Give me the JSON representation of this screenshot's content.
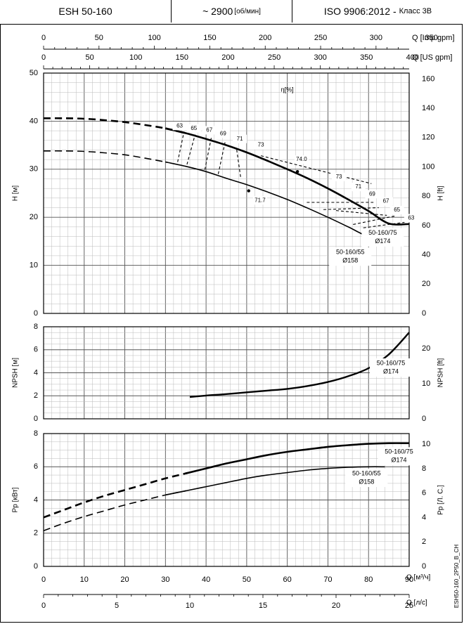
{
  "header": {
    "model": "ESH 50-160",
    "speed": "~ 2900",
    "speed_unit": "[об/мин]",
    "standard": "ISO 9906:2012 -",
    "standard_class": "Класс 3В"
  },
  "footer_code": "ESH50-160_2P50_B_CH",
  "chart_data": [
    {
      "type": "line",
      "name": "head",
      "ylabel": "H [м]",
      "ylabel_right": "H [ft]",
      "ylim": [
        0,
        50
      ],
      "yticks": [
        0,
        10,
        20,
        30,
        40,
        50
      ],
      "yright_ticks": [
        0,
        20,
        40,
        60,
        80,
        100,
        120,
        140,
        160
      ],
      "efficiency_label": "η[%]",
      "series": [
        {
          "name": "50-160/75",
          "diameter": "Ø174",
          "x": [
            0,
            5,
            10,
            15,
            20,
            25,
            30,
            35,
            40,
            45,
            50,
            55,
            60,
            65,
            70,
            75,
            80,
            85,
            90
          ],
          "y": [
            40.6,
            40.6,
            40.5,
            40.2,
            39.8,
            39.2,
            38.5,
            37.5,
            36.3,
            35.0,
            33.5,
            31.8,
            30.0,
            28.1,
            26.0,
            23.7,
            21.3,
            18.7,
            18.6
          ],
          "dashed_below_x": 35
        },
        {
          "name": "50-160/55",
          "diameter": "Ø158",
          "x": [
            0,
            5,
            10,
            15,
            20,
            25,
            30,
            35,
            40,
            45,
            50,
            55,
            60,
            65,
            70,
            75,
            80,
            84
          ],
          "y": [
            33.8,
            33.8,
            33.7,
            33.4,
            33.0,
            32.3,
            31.5,
            30.6,
            29.5,
            28.1,
            26.8,
            25.3,
            23.7,
            21.9,
            20.0,
            18.0,
            16.0,
            16.0
          ],
          "dashed_below_x": 33
        }
      ],
      "efficiency_lines": [
        {
          "label": "63",
          "x": [
            33,
            34.5
          ],
          "y": [
            31.5,
            37.5
          ]
        },
        {
          "label": "65",
          "x": [
            35.3,
            37.3
          ],
          "y": [
            31.0,
            37.2
          ]
        },
        {
          "label": "67",
          "x": [
            39.7,
            41.3
          ],
          "y": [
            29.9,
            36.6
          ]
        },
        {
          "label": "69",
          "x": [
            43.0,
            44.7
          ],
          "y": [
            29.0,
            35.7
          ]
        },
        {
          "label": "71",
          "x": [
            48.5,
            47.5
          ],
          "y": [
            28.4,
            34.3
          ]
        },
        {
          "label": "73",
          "x": [
            53.5,
            80.7
          ],
          "y": [
            32.8,
            27.0
          ]
        },
        {
          "label": "74.0",
          "x": [
            62.5
          ],
          "y": [
            29.5
          ]
        },
        {
          "label": "71",
          "x": [
            64.8,
            81.2
          ],
          "y": [
            23.1,
            23.1
          ]
        },
        {
          "label": "69",
          "x": [
            68.9,
            82.5
          ],
          "y": [
            21.6,
            22.0
          ]
        },
        {
          "label": "67",
          "x": [
            72.0,
            84.5
          ],
          "y": [
            21.4,
            20.4
          ]
        },
        {
          "label": "65",
          "x": [
            76.2,
            86.7
          ],
          "y": [
            18.5,
            20.3
          ]
        },
        {
          "label": "63",
          "x": [
            78.7,
            89.3
          ],
          "y": [
            17.8,
            19.0
          ]
        }
      ],
      "efficiency_curve_labels": [
        {
          "text": "63",
          "x": 33.5,
          "y": 39.0
        },
        {
          "text": "65",
          "x": 37.0,
          "y": 38.5
        },
        {
          "text": "67",
          "x": 40.8,
          "y": 38.1
        },
        {
          "text": "69",
          "x": 44.2,
          "y": 37.4
        },
        {
          "text": "71",
          "x": 48.3,
          "y": 36.3
        },
        {
          "text": "73",
          "x": 53.5,
          "y": 35.0
        },
        {
          "text": "74.0",
          "x": 63.5,
          "y": 32.0
        },
        {
          "text": "73",
          "x": 72.7,
          "y": 28.4
        },
        {
          "text": "71",
          "x": 77.5,
          "y": 26.3
        },
        {
          "text": "69",
          "x": 80.9,
          "y": 24.8
        },
        {
          "text": "67",
          "x": 84.3,
          "y": 23.3
        },
        {
          "text": "65",
          "x": 87.0,
          "y": 21.5
        },
        {
          "text": "63",
          "x": 90.5,
          "y": 19.8
        },
        {
          "text": "71.7",
          "x": 53.3,
          "y": 23.5
        }
      ]
    },
    {
      "type": "line",
      "name": "npsh",
      "ylabel": "NPSH [м]",
      "ylabel_right": "NPSH [ft]",
      "ylim": [
        0,
        8
      ],
      "yticks": [
        0,
        2,
        4,
        6,
        8
      ],
      "yright_ticks": [
        0,
        10,
        20
      ],
      "series": [
        {
          "name": "50-160/75",
          "diameter": "Ø174",
          "x": [
            36,
            40,
            45,
            50,
            55,
            60,
            65,
            70,
            75,
            80,
            85,
            90
          ],
          "y": [
            1.9,
            2.02,
            2.15,
            2.3,
            2.45,
            2.6,
            2.85,
            3.2,
            3.7,
            4.4,
            5.6,
            7.5
          ]
        }
      ]
    },
    {
      "type": "line",
      "name": "power",
      "ylabel": "Pp [кВт]",
      "ylabel_right": "Pp [Л. С.]",
      "ylim": [
        0,
        8
      ],
      "yticks": [
        0,
        2,
        4,
        6,
        8
      ],
      "yright_ticks": [
        0,
        2,
        4,
        6,
        8,
        10
      ],
      "xlabel_q_m3h": "Q [м³/ч]",
      "xticks_m3h": [
        0,
        10,
        20,
        30,
        40,
        50,
        60,
        70,
        80,
        90
      ],
      "xlabel_q_ls": "Q [л/с]",
      "xticks_ls": [
        0,
        5,
        10,
        15,
        20,
        25
      ],
      "xlabel_q_imp": "Q [Imp gpm]",
      "xticks_imp": [
        0,
        50,
        100,
        150,
        200,
        250,
        300,
        350
      ],
      "xlabel_q_us": "Q [US gpm]",
      "xticks_us": [
        0,
        50,
        100,
        150,
        200,
        250,
        300,
        350,
        400
      ],
      "series": [
        {
          "name": "50-160/75",
          "diameter": "Ø174",
          "x": [
            0,
            5,
            10,
            15,
            20,
            25,
            30,
            35,
            40,
            45,
            50,
            55,
            60,
            65,
            70,
            75,
            80,
            85,
            90
          ],
          "y": [
            2.95,
            3.4,
            3.85,
            4.25,
            4.6,
            4.95,
            5.3,
            5.6,
            5.9,
            6.2,
            6.45,
            6.7,
            6.9,
            7.05,
            7.2,
            7.3,
            7.38,
            7.42,
            7.42
          ],
          "dashed_below_x": 36
        },
        {
          "name": "50-160/55",
          "diameter": "Ø158",
          "x": [
            0,
            5,
            10,
            15,
            20,
            25,
            30,
            35,
            40,
            45,
            50,
            55,
            60,
            65,
            70,
            75,
            80,
            84
          ],
          "y": [
            2.15,
            2.6,
            3.0,
            3.35,
            3.7,
            4.0,
            4.3,
            4.55,
            4.8,
            5.05,
            5.3,
            5.5,
            5.65,
            5.8,
            5.9,
            5.97,
            6.0,
            6.0
          ],
          "dashed_below_x": 35
        }
      ]
    }
  ]
}
